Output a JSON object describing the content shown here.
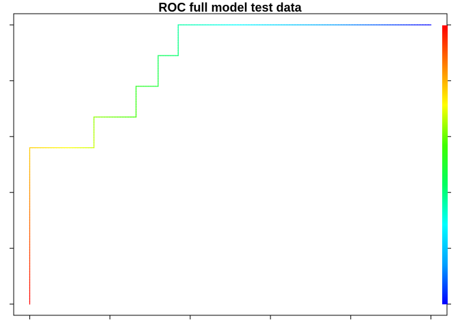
{
  "chart_data": {
    "type": "line",
    "title": "ROC full model test data",
    "xlabel": "",
    "ylabel": "",
    "xlim": [
      -0.04,
      1.04
    ],
    "ylim": [
      -0.04,
      1.04
    ],
    "grid": false,
    "legend": "colorbar-right",
    "series": [
      {
        "x": [
          0,
          0,
          0,
          0.16,
          0.16,
          0.265,
          0.265,
          0.32,
          0.32,
          0.37,
          0.37,
          1.0
        ],
        "y": [
          0,
          0.33,
          0.56,
          0.56,
          0.67,
          0.67,
          0.78,
          0.78,
          0.89,
          0.89,
          1.0,
          1.0
        ]
      }
    ],
    "colorbar": {
      "colors": [
        "#0000ff",
        "#00a0ff",
        "#00ffff",
        "#00ff60",
        "#40ff00",
        "#ffff00",
        "#ff8000",
        "#ff0000"
      ],
      "range": [
        0,
        1
      ]
    }
  }
}
